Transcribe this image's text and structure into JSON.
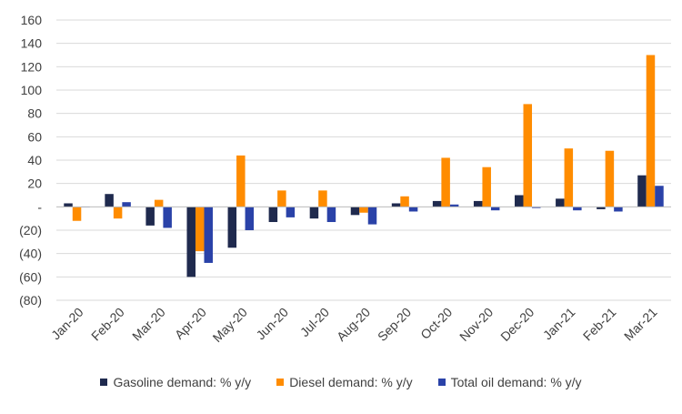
{
  "chart_data": {
    "type": "bar",
    "title": "",
    "xlabel": "",
    "ylabel": "",
    "ylim": [
      -80,
      160
    ],
    "yticks": [
      160,
      140,
      120,
      100,
      80,
      60,
      40,
      20,
      0,
      -20,
      -40,
      -60,
      -80
    ],
    "ytick_labels": [
      "160",
      "140",
      "120",
      "100",
      "80",
      "60",
      "40",
      "20",
      "-",
      "(20)",
      "(40)",
      "(60)",
      "(80)"
    ],
    "grid": true,
    "legend_position": "bottom",
    "categories": [
      "Jan-20",
      "Feb-20",
      "Mar-20",
      "Apr-20",
      "May-20",
      "Jun-20",
      "Jul-20",
      "Aug-20",
      "Sep-20",
      "Oct-20",
      "Nov-20",
      "Dec-20",
      "Jan-21",
      "Feb-21",
      "Mar-21"
    ],
    "series": [
      {
        "name": "Gasoline demand: % y/y",
        "color": "#1f2a4e",
        "values": [
          3,
          11,
          -16,
          -60,
          -35,
          -13,
          -10,
          -7,
          3,
          5,
          5,
          10,
          7,
          -2,
          27
        ]
      },
      {
        "name": "Diesel demand: % y/y",
        "color": "#ff8c00",
        "values": [
          -12,
          -10,
          6,
          -38,
          44,
          14,
          14,
          -5,
          9,
          42,
          34,
          88,
          50,
          48,
          130
        ]
      },
      {
        "name": "Total oil demand: % y/y",
        "color": "#2a42a8",
        "values": [
          0,
          4,
          -18,
          -48,
          -20,
          -9,
          -13,
          -15,
          -4,
          2,
          -3,
          -1,
          -3,
          -4,
          18
        ]
      }
    ]
  }
}
